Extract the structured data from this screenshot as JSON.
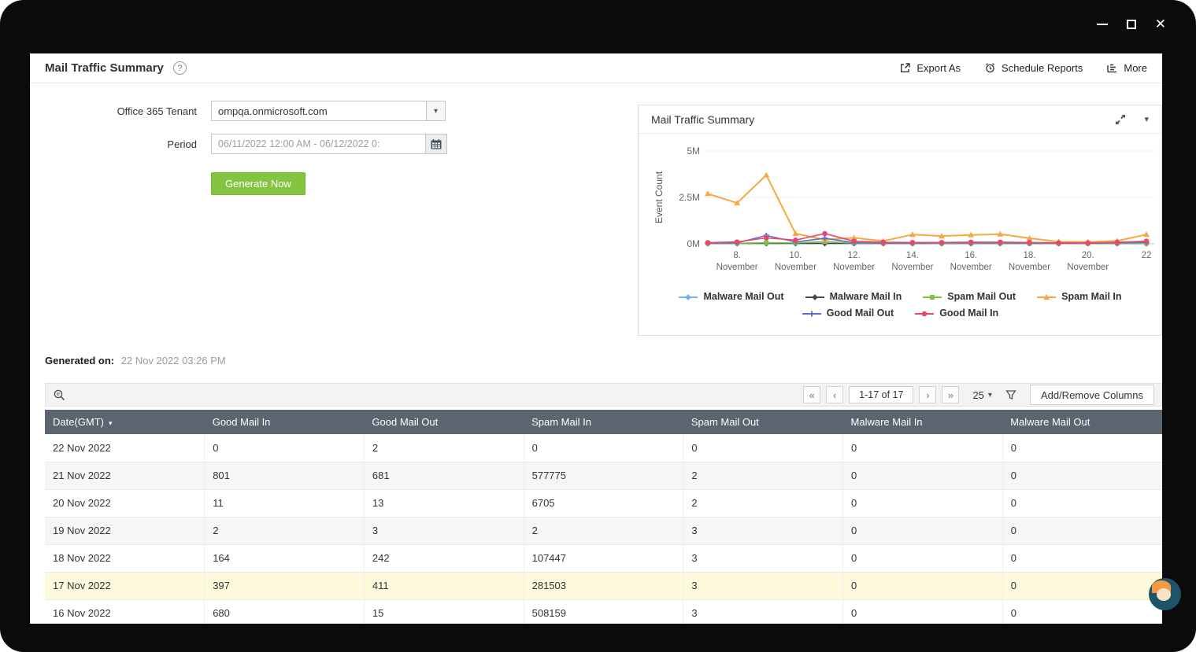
{
  "icons": {
    "help": "?",
    "close": "✕",
    "caret_down": "▾"
  },
  "header": {
    "title": "Mail Traffic Summary",
    "actions": [
      {
        "label": "Export As"
      },
      {
        "label": "Schedule Reports"
      },
      {
        "label": "More"
      }
    ]
  },
  "form": {
    "tenant_label": "Office 365 Tenant",
    "tenant_value": "ompqa.onmicrosoft.com",
    "period_label": "Period",
    "period_value": "06/11/2022 12:00 AM - 06/12/2022 0:",
    "generate_label": "Generate Now"
  },
  "chart_panel": {
    "title": "Mail Traffic Summary"
  },
  "chart_data": {
    "type": "line",
    "title": "Mail Traffic Summary",
    "ylabel": "Event Count",
    "ylim_m": [
      0,
      5
    ],
    "yticks": [
      {
        "value_m": 0,
        "label": "0M"
      },
      {
        "value_m": 2.5,
        "label": "2.5M"
      },
      {
        "value_m": 5,
        "label": "5M"
      }
    ],
    "x_days": [
      7,
      8,
      9,
      10,
      11,
      12,
      13,
      14,
      15,
      16,
      17,
      18,
      19,
      20,
      21,
      22
    ],
    "xticks": [
      {
        "day": 8,
        "line1": "8.",
        "line2": "November"
      },
      {
        "day": 10,
        "line1": "10.",
        "line2": "November"
      },
      {
        "day": 12,
        "line1": "12.",
        "line2": "November"
      },
      {
        "day": 14,
        "line1": "14.",
        "line2": "November"
      },
      {
        "day": 16,
        "line1": "16.",
        "line2": "November"
      },
      {
        "day": 18,
        "line1": "18.",
        "line2": "November"
      },
      {
        "day": 20,
        "line1": "20.",
        "line2": "November"
      },
      {
        "day": 22,
        "line1": "22",
        "line2": ""
      }
    ],
    "legend_rows": [
      4,
      2
    ],
    "series": [
      {
        "name": "Malware Mail Out",
        "color": "#6fb1f5",
        "marker": "diamond",
        "values_m": [
          0.025,
          0.025,
          0.025,
          0.025,
          0.025,
          0.025,
          0.025,
          0.025,
          0.025,
          0.025,
          0.025,
          0.025,
          0.025,
          0.025,
          0.025,
          0.025
        ]
      },
      {
        "name": "Malware Mail In",
        "color": "#45494d",
        "marker": "diamond",
        "values_m": [
          0.02,
          0.02,
          0.02,
          0.02,
          0.02,
          0.02,
          0.02,
          0.02,
          0.02,
          0.02,
          0.02,
          0.02,
          0.02,
          0.02,
          0.02,
          0.02
        ]
      },
      {
        "name": "Spam Mail Out",
        "color": "#7cc243",
        "marker": "square",
        "values_m": [
          0.03,
          0.03,
          0.06,
          0.05,
          0.12,
          0.04,
          0.03,
          0.03,
          0.03,
          0.03,
          0.03,
          0.03,
          0.03,
          0.03,
          0.03,
          0.03
        ]
      },
      {
        "name": "Spam Mail In",
        "color": "#f5a843",
        "marker": "triangle",
        "values_m": [
          2.7,
          2.2,
          3.7,
          0.55,
          0.22,
          0.32,
          0.15,
          0.5,
          0.42,
          0.48,
          0.52,
          0.3,
          0.12,
          0.1,
          0.16,
          0.5
        ]
      },
      {
        "name": "Good Mail Out",
        "color": "#5d6fd8",
        "marker": "plus",
        "values_m": [
          0.04,
          0.05,
          0.45,
          0.1,
          0.3,
          0.06,
          0.04,
          0.04,
          0.05,
          0.05,
          0.05,
          0.04,
          0.04,
          0.04,
          0.05,
          0.08
        ]
      },
      {
        "name": "Good Mail In",
        "color": "#e8486e",
        "marker": "circle",
        "values_m": [
          0.06,
          0.1,
          0.32,
          0.2,
          0.55,
          0.14,
          0.08,
          0.07,
          0.07,
          0.09,
          0.09,
          0.07,
          0.05,
          0.05,
          0.08,
          0.14
        ]
      }
    ]
  },
  "generated_on": {
    "label": "Generated on:",
    "value": "22 Nov 2022 03:26 PM"
  },
  "toolbar": {
    "pagination": {
      "first": "«",
      "prev": "‹",
      "range": "1-17 of 17",
      "next": "›",
      "last": "»"
    },
    "page_size": "25",
    "add_remove_columns": "Add/Remove Columns"
  },
  "table": {
    "sort_icon": "▾",
    "columns": [
      "Date(GMT)",
      "Good Mail In",
      "Good Mail Out",
      "Spam Mail In",
      "Spam Mail Out",
      "Malware Mail In",
      "Malware Mail Out"
    ],
    "rows": [
      {
        "date": "22 Nov 2022",
        "good_in": "0",
        "good_out": "2",
        "spam_in": "0",
        "spam_out": "0",
        "malware_in": "0",
        "malware_out": "0"
      },
      {
        "date": "21 Nov 2022",
        "good_in": "801",
        "good_out": "681",
        "spam_in": "577775",
        "spam_out": "2",
        "malware_in": "0",
        "malware_out": "0"
      },
      {
        "date": "20 Nov 2022",
        "good_in": "11",
        "good_out": "13",
        "spam_in": "6705",
        "spam_out": "2",
        "malware_in": "0",
        "malware_out": "0"
      },
      {
        "date": "19 Nov 2022",
        "good_in": "2",
        "good_out": "3",
        "spam_in": "2",
        "spam_out": "3",
        "malware_in": "0",
        "malware_out": "0"
      },
      {
        "date": "18 Nov 2022",
        "good_in": "164",
        "good_out": "242",
        "spam_in": "107447",
        "spam_out": "3",
        "malware_in": "0",
        "malware_out": "0"
      },
      {
        "date": "17 Nov 2022",
        "good_in": "397",
        "good_out": "411",
        "spam_in": "281503",
        "spam_out": "3",
        "malware_in": "0",
        "malware_out": "0"
      },
      {
        "date": "16 Nov 2022",
        "good_in": "680",
        "good_out": "15",
        "spam_in": "508159",
        "spam_out": "3",
        "malware_in": "0",
        "malware_out": "0"
      }
    ]
  }
}
